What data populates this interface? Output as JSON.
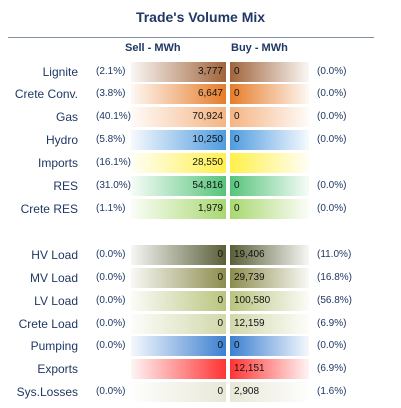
{
  "title": "Trade's Volume Mix",
  "headers": {
    "sell": "Sell - MWh",
    "buy": "Buy - MWh"
  },
  "rows": [
    {
      "label": "Lignite",
      "sell_pct": "(2.1%)",
      "sell": "3,777",
      "buy": "0",
      "buy_pct": "(0.0%)",
      "sell_color": "#a0643c",
      "buy_color": "#a0643c"
    },
    {
      "label": "Crete Conv.",
      "sell_pct": "(3.8%)",
      "sell": "6,647",
      "buy": "0",
      "buy_pct": "(0.0%)",
      "sell_color": "#e67c28",
      "buy_color": "#e67c28"
    },
    {
      "label": "Gas",
      "sell_pct": "(40.1%)",
      "sell": "70,924",
      "buy": "0",
      "buy_pct": "(0.0%)",
      "sell_color": "#f5b482",
      "buy_color": "#f5b482"
    },
    {
      "label": "Hydro",
      "sell_pct": "(5.8%)",
      "sell": "10,250",
      "buy": "0",
      "buy_pct": "(0.0%)",
      "sell_color": "#4f9be0",
      "buy_color": "#4f9be0"
    },
    {
      "label": "Imports",
      "sell_pct": "(16.1%)",
      "sell": "28,550",
      "buy": "",
      "buy_pct": "",
      "sell_color": "#fff04a",
      "buy_color": "#fff04a"
    },
    {
      "label": "RES",
      "sell_pct": "(31.0%)",
      "sell": "54,816",
      "buy": "0",
      "buy_pct": "(0.0%)",
      "sell_color": "#56c47a",
      "buy_color": "#56c47a"
    },
    {
      "label": "Crete RES",
      "sell_pct": "(1.1%)",
      "sell": "1,979",
      "buy": "0",
      "buy_pct": "(0.0%)",
      "sell_color": "#a8d870",
      "buy_color": "#a8d870"
    },
    {
      "label": "HV Load",
      "sell_pct": "(0.0%)",
      "sell": "0",
      "buy": "19,406",
      "buy_pct": "(11.0%)",
      "sell_color": "#5a5f38",
      "buy_color": "#5a5f38"
    },
    {
      "label": "MV Load",
      "sell_pct": "(0.0%)",
      "sell": "0",
      "buy": "29,739",
      "buy_pct": "(16.8%)",
      "sell_color": "#8c8c4e",
      "buy_color": "#8c8c4e"
    },
    {
      "label": "LV Load",
      "sell_pct": "(0.0%)",
      "sell": "0",
      "buy": "100,580",
      "buy_pct": "(56.8%)",
      "sell_color": "#b9c47e",
      "buy_color": "#b9c47e"
    },
    {
      "label": "Crete Load",
      "sell_pct": "(0.0%)",
      "sell": "0",
      "buy": "12,159",
      "buy_pct": "(6.9%)",
      "sell_color": "#d2d8aa",
      "buy_color": "#d2d8aa"
    },
    {
      "label": "Pumping",
      "sell_pct": "(0.0%)",
      "sell": "0",
      "buy": "0",
      "buy_pct": "(0.0%)",
      "sell_color": "#3c7fd0",
      "buy_color": "#3c7fd0"
    },
    {
      "label": "Exports",
      "sell_pct": "",
      "sell": "",
      "buy": "12,151",
      "buy_pct": "(6.9%)",
      "sell_color": "#ff3333",
      "buy_color": "#ff3333"
    },
    {
      "label": "Sys.Losses",
      "sell_pct": "(0.0%)",
      "sell": "0",
      "buy": "2,908",
      "buy_pct": "(1.6%)",
      "sell_color": "#e8e8d8",
      "buy_color": "#e8e8d8"
    }
  ]
}
